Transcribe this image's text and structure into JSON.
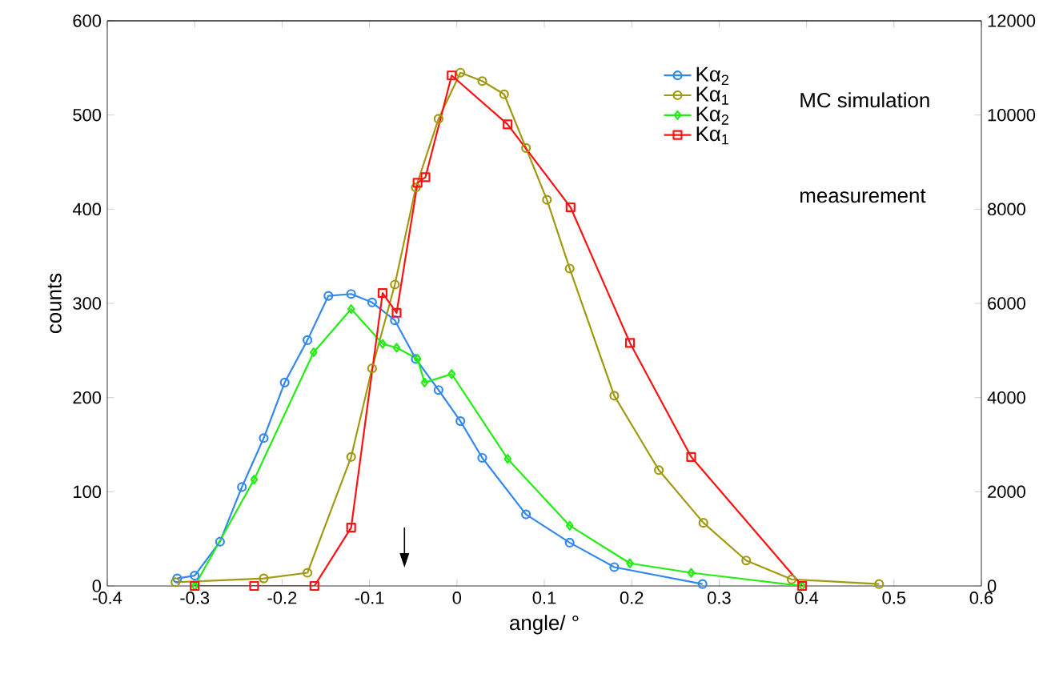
{
  "chart_data": {
    "type": "line",
    "xlabel": "angle/ °",
    "ylabel": "counts",
    "xlim": [
      -0.4,
      0.6
    ],
    "xticks": [
      -0.4,
      -0.3,
      -0.2,
      -0.1,
      0,
      0.1,
      0.2,
      0.3,
      0.4,
      0.5,
      0.6
    ],
    "ylim": [
      0,
      600
    ],
    "yticks": [
      0,
      100,
      200,
      300,
      400,
      500,
      600
    ],
    "y2lim": [
      0,
      12000
    ],
    "y2ticks": [
      0,
      2000,
      4000,
      6000,
      8000,
      10000,
      12000
    ],
    "grid": false,
    "legend": "top right",
    "line_style": "solid",
    "annotations": [
      "MC simulation",
      "measurement"
    ],
    "series": [
      {
        "name": "Kα$_{2}$",
        "color": "#3388ee",
        "marker": "circle",
        "x": [
          -0.32,
          -0.3,
          -0.271,
          -0.246,
          -0.221,
          -0.197,
          -0.171,
          -0.147,
          -0.121,
          -0.097,
          -0.071,
          -0.047,
          -0.021,
          0.004,
          0.029,
          0.079,
          0.129,
          0.18,
          0.281
        ],
        "values": [
          8,
          11,
          47,
          105,
          157,
          216,
          261,
          308,
          310,
          301,
          282,
          241,
          208,
          175,
          136,
          76,
          46,
          20,
          2
        ]
      },
      {
        "name": "Kα$_{1}$",
        "color": "#a09a10",
        "marker": "circle",
        "x": [
          -0.322,
          -0.221,
          -0.171,
          -0.121,
          -0.097,
          -0.071,
          -0.047,
          -0.021,
          0.004,
          0.029,
          0.054,
          0.079,
          0.103,
          0.129,
          0.18,
          0.231,
          0.282,
          0.331,
          0.383,
          0.483
        ],
        "values": [
          4,
          8,
          14,
          137,
          231,
          320,
          423,
          496,
          545,
          536,
          522,
          465,
          410,
          337,
          202,
          123,
          67,
          27,
          7,
          2
        ]
      },
      {
        "name": "Kα$_{2}$",
        "color": "#22ee11",
        "marker": "diamond",
        "x": [
          -0.3,
          -0.232,
          -0.164,
          -0.121,
          -0.085,
          -0.069,
          -0.045,
          -0.037,
          -0.006,
          0.058,
          0.129,
          0.198,
          0.268,
          0.395
        ],
        "values": [
          0,
          113,
          248,
          294,
          257,
          253,
          241,
          216,
          225,
          135,
          64,
          24,
          14,
          0
        ]
      },
      {
        "name": "Kα$_{1}$",
        "color": "#ff1111",
        "marker": "square",
        "x": [
          -0.3,
          -0.232,
          -0.163,
          -0.121,
          -0.085,
          -0.069,
          -0.045,
          -0.036,
          -0.006,
          0.058,
          0.13,
          0.198,
          0.268,
          0.395
        ],
        "values": [
          0,
          0,
          0,
          62,
          311,
          290,
          428,
          434,
          542,
          490,
          402,
          258,
          137,
          0
        ]
      }
    ]
  }
}
